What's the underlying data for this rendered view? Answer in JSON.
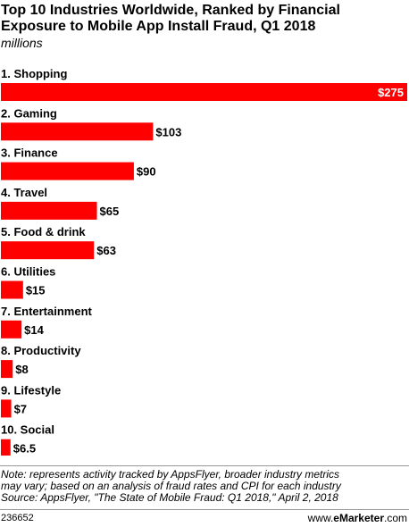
{
  "header": {
    "title": "Top 10 Industries Worldwide, Ranked by Financial Exposure to Mobile App Install Fraud, Q1 2018",
    "subtitle": "millions"
  },
  "chart_data": {
    "type": "bar",
    "orientation": "horizontal",
    "title": "Top 10 Industries Worldwide, Ranked by Financial Exposure to Mobile App Install Fraud, Q1 2018",
    "subtitle": "millions",
    "categories": [
      "1. Shopping",
      "2. Gaming",
      "3. Finance",
      "4. Travel",
      "5. Food & drink",
      "6. Utilities",
      "7. Entertainment",
      "8. Productivity",
      "9. Lifestyle",
      "10. Social"
    ],
    "values": [
      275,
      103,
      90,
      65,
      63,
      15,
      14,
      8,
      7,
      6.5
    ],
    "value_labels": [
      "$275",
      "$103",
      "$90",
      "$65",
      "$63",
      "$15",
      "$14",
      "$8",
      "$7",
      "$6.5"
    ],
    "xlim": [
      0,
      275
    ],
    "grid": false,
    "bar_color": "#ff0000"
  },
  "footer": {
    "note_lines": [
      "Note: represents activity tracked by AppsFlyer, broader industry metrics",
      "may vary; based on an analysis of fraud rates and CPI for each industry",
      "Source: AppsFlyer, \"The State of Mobile Fraud: Q1 2018,\" April 2, 2018"
    ],
    "chart_id": "236652",
    "site_prefix": "www.",
    "site_brand": "eMarketer",
    "site_suffix": ".com"
  }
}
